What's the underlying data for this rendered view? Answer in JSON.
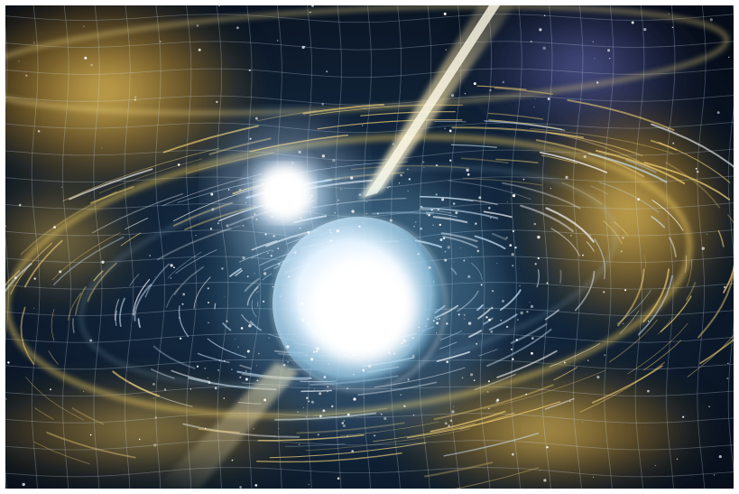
{
  "image": {
    "palette": {
      "deep_space": "#0b1322",
      "nebula_gold": "#d9b04a",
      "nebula_amber": "#a87a22",
      "core_white": "#ffffff",
      "ice_blue": "#bfe6ff",
      "teal": "#2c6f86",
      "violet": "#6e6fb8",
      "grid": "#d8e6f5"
    }
  }
}
